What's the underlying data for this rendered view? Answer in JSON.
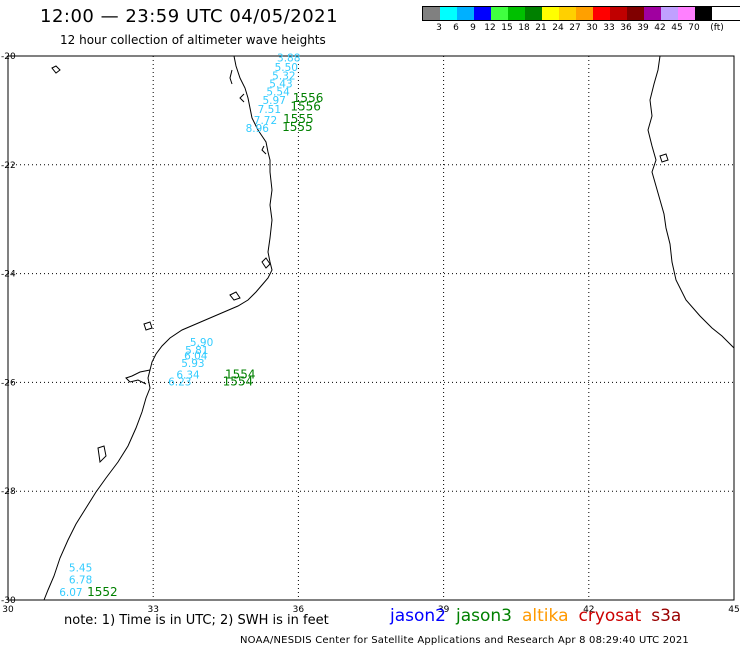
{
  "header": {
    "title": "12:00 — 23:59 UTC 04/05/2021",
    "subtitle": "12 hour collection of altimeter wave heights"
  },
  "legend": {
    "unit": "(ft)",
    "bins": [
      {
        "label": "3",
        "color": "#808080"
      },
      {
        "label": "6",
        "color": "#00ffff"
      },
      {
        "label": "9",
        "color": "#00b0ff"
      },
      {
        "label": "12",
        "color": "#0000ff"
      },
      {
        "label": "15",
        "color": "#40ff40"
      },
      {
        "label": "18",
        "color": "#00c000"
      },
      {
        "label": "21",
        "color": "#008000"
      },
      {
        "label": "24",
        "color": "#ffff00"
      },
      {
        "label": "27",
        "color": "#ffd000"
      },
      {
        "label": "30",
        "color": "#ffa000"
      },
      {
        "label": "33",
        "color": "#ff0000"
      },
      {
        "label": "36",
        "color": "#c00000"
      },
      {
        "label": "39",
        "color": "#800000"
      },
      {
        "label": "42",
        "color": "#a000a0"
      },
      {
        "label": "45",
        "color": "#c0a0ff"
      },
      {
        "label": "70",
        "color": "#ff80ff"
      },
      {
        "label": "",
        "color": "#000000"
      }
    ]
  },
  "axes": {
    "lon_ticks": [
      "30",
      "33",
      "36",
      "39",
      "42",
      "45"
    ],
    "lat_ticks": [
      "-20",
      "-22",
      "-24",
      "-26",
      "-28",
      "-30"
    ],
    "lon_range": [
      30,
      45
    ],
    "lat_range": [
      -30,
      -20
    ]
  },
  "tracks": [
    {
      "name": "pass-1556",
      "swh": [
        {
          "text": "3.88",
          "lon": 35.8,
          "lat": -20.1
        },
        {
          "text": "5.50",
          "lon": 35.75,
          "lat": -20.28
        },
        {
          "text": "5.32",
          "lon": 35.7,
          "lat": -20.43
        },
        {
          "text": "5.43",
          "lon": 35.64,
          "lat": -20.58
        },
        {
          "text": "5.54",
          "lon": 35.58,
          "lat": -20.73
        },
        {
          "text": "5.97",
          "lon": 35.5,
          "lat": -20.88
        },
        {
          "text": "7.51",
          "lon": 35.4,
          "lat": -21.05
        },
        {
          "text": "7.72",
          "lon": 35.32,
          "lat": -21.25
        },
        {
          "text": "8.96",
          "lon": 35.15,
          "lat": -21.4
        }
      ],
      "times": [
        {
          "text": "1556",
          "lon": 36.2,
          "lat": -20.85
        },
        {
          "text": "1556",
          "lon": 36.15,
          "lat": -21.0
        },
        {
          "text": "1555",
          "lon": 36.0,
          "lat": -21.23
        },
        {
          "text": "1555",
          "lon": 35.98,
          "lat": -21.38
        }
      ]
    },
    {
      "name": "pass-1554",
      "swh": [
        {
          "text": "5.90",
          "lon": 34.0,
          "lat": -25.33
        },
        {
          "text": "5.81",
          "lon": 33.9,
          "lat": -25.48
        },
        {
          "text": "6.04",
          "lon": 33.88,
          "lat": -25.58
        },
        {
          "text": "5.93",
          "lon": 33.82,
          "lat": -25.72
        },
        {
          "text": "6.34",
          "lon": 33.72,
          "lat": -25.93
        },
        {
          "text": "6.23",
          "lon": 33.55,
          "lat": -26.06
        }
      ],
      "times": [
        {
          "text": "1554",
          "lon": 34.8,
          "lat": -25.93
        },
        {
          "text": "1554",
          "lon": 34.75,
          "lat": -26.06
        }
      ]
    },
    {
      "name": "pass-1552",
      "swh": [
        {
          "text": "5.45",
          "lon": 31.5,
          "lat": -29.48
        },
        {
          "text": "6.78",
          "lon": 31.5,
          "lat": -29.7
        },
        {
          "text": "6.07",
          "lon": 31.3,
          "lat": -29.93
        }
      ],
      "times": [
        {
          "text": "1552",
          "lon": 31.95,
          "lat": -29.93
        }
      ]
    }
  ],
  "footer": {
    "note": "note: 1) Time is in UTC; 2) SWH is in feet",
    "satellites": [
      {
        "name": "jason2",
        "color": "#0000ff"
      },
      {
        "name": "jason3",
        "color": "#008000"
      },
      {
        "name": "altika",
        "color": "#ff9900"
      },
      {
        "name": "cryosat",
        "color": "#cc0000"
      },
      {
        "name": "s3a",
        "color": "#990000"
      }
    ],
    "credit": "NOAA/NESDIS Center for Satellite Applications and Research   Apr  8 08:29:40 UTC 2021"
  },
  "colors": {
    "swh_label": "#33ccff",
    "time_label": "#008000",
    "grid": "#000000",
    "coastline": "#000000"
  }
}
